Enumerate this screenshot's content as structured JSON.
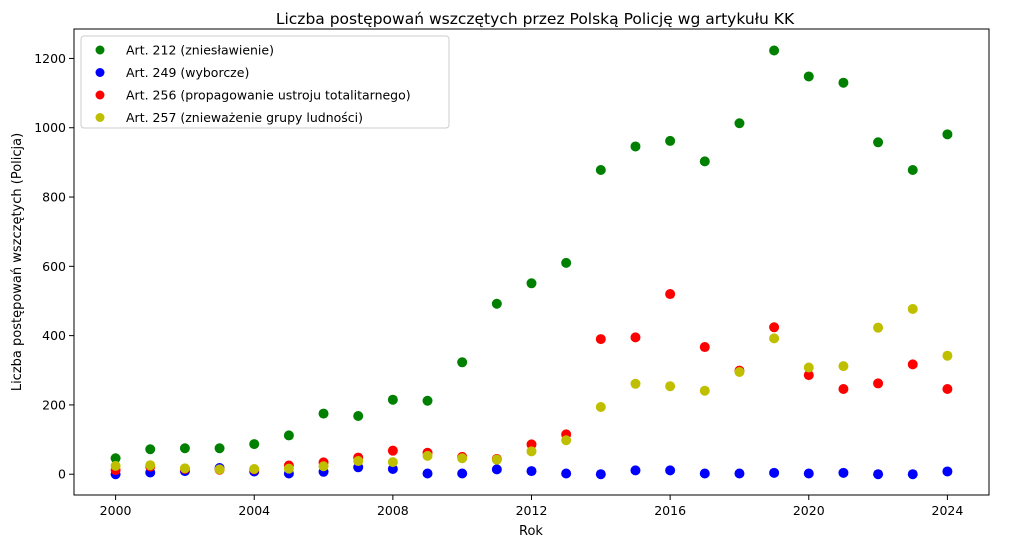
{
  "chart_data": {
    "type": "scatter",
    "title": "Liczba postępowań wszczętych przez Polską Policję wg artykułu KK",
    "xlabel": "Rok",
    "ylabel": "Liczba postępowań wszczętych (Policja)",
    "xlim": [
      1998.8,
      2025.2
    ],
    "ylim": [
      -60,
      1285
    ],
    "xticks": [
      2000,
      2004,
      2008,
      2012,
      2016,
      2020,
      2024
    ],
    "yticks": [
      0,
      200,
      400,
      600,
      800,
      1000,
      1200
    ],
    "grid": false,
    "legend_position": "top-left",
    "x": [
      2000,
      2001,
      2002,
      2003,
      2004,
      2005,
      2006,
      2007,
      2008,
      2009,
      2010,
      2011,
      2012,
      2013,
      2014,
      2015,
      2016,
      2017,
      2018,
      2019,
      2020,
      2021,
      2022,
      2023,
      2024
    ],
    "series": [
      {
        "name": "Art. 212 (zniesławienie)",
        "color": "#008000",
        "values": [
          46,
          72,
          75,
          75,
          87,
          112,
          175,
          168,
          215,
          212,
          323,
          492,
          551,
          610,
          878,
          946,
          962,
          903,
          1013,
          1223,
          1148,
          1130,
          958,
          878,
          981
        ]
      },
      {
        "name": "Art. 249 (wyborcze)",
        "color": "#0000ff",
        "values": [
          0,
          5,
          9,
          18,
          8,
          2,
          7,
          20,
          15,
          2,
          2,
          14,
          9,
          2,
          0,
          11,
          11,
          2,
          2,
          4,
          2,
          4,
          0,
          0,
          8
        ]
      },
      {
        "name": "Art. 256 (propagowanie ustroju totalitarnego)",
        "color": "#ff0000",
        "values": [
          12,
          22,
          15,
          13,
          14,
          25,
          34,
          48,
          68,
          62,
          50,
          44,
          86,
          115,
          390,
          395,
          520,
          367,
          299,
          424,
          286,
          246,
          262,
          317,
          246
        ]
      },
      {
        "name": "Art. 257 (znieważenie grupy ludności)",
        "color": "#bfbf00",
        "values": [
          24,
          26,
          17,
          14,
          15,
          16,
          23,
          38,
          35,
          53,
          46,
          42,
          66,
          98,
          194,
          261,
          254,
          241,
          295,
          392,
          308,
          312,
          423,
          477,
          342
        ]
      }
    ]
  }
}
